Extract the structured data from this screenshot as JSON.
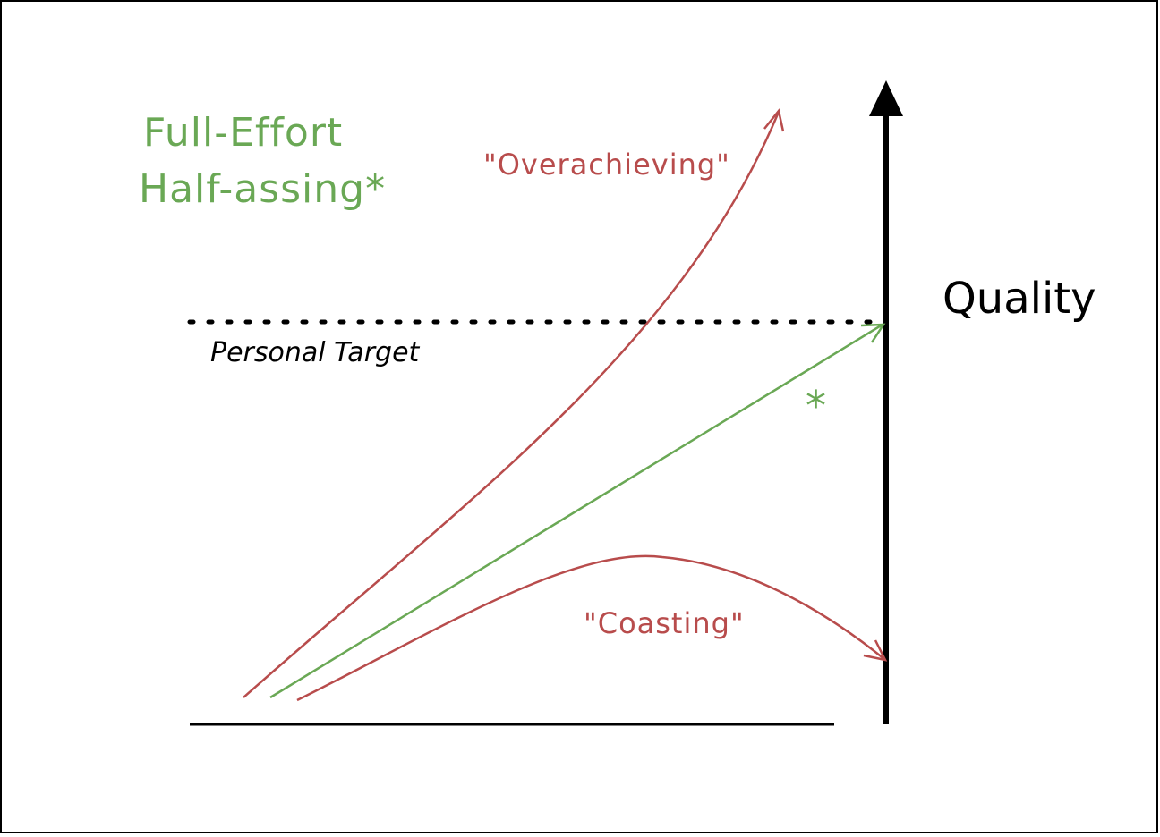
{
  "title": {
    "line1": "Full-Effort",
    "line2": "Half-assing*"
  },
  "labels": {
    "overachieving": "\"Overachieving\"",
    "coasting": "\"Coasting\"",
    "target": "Personal Target",
    "axis": "Quality",
    "star": "*"
  }
}
